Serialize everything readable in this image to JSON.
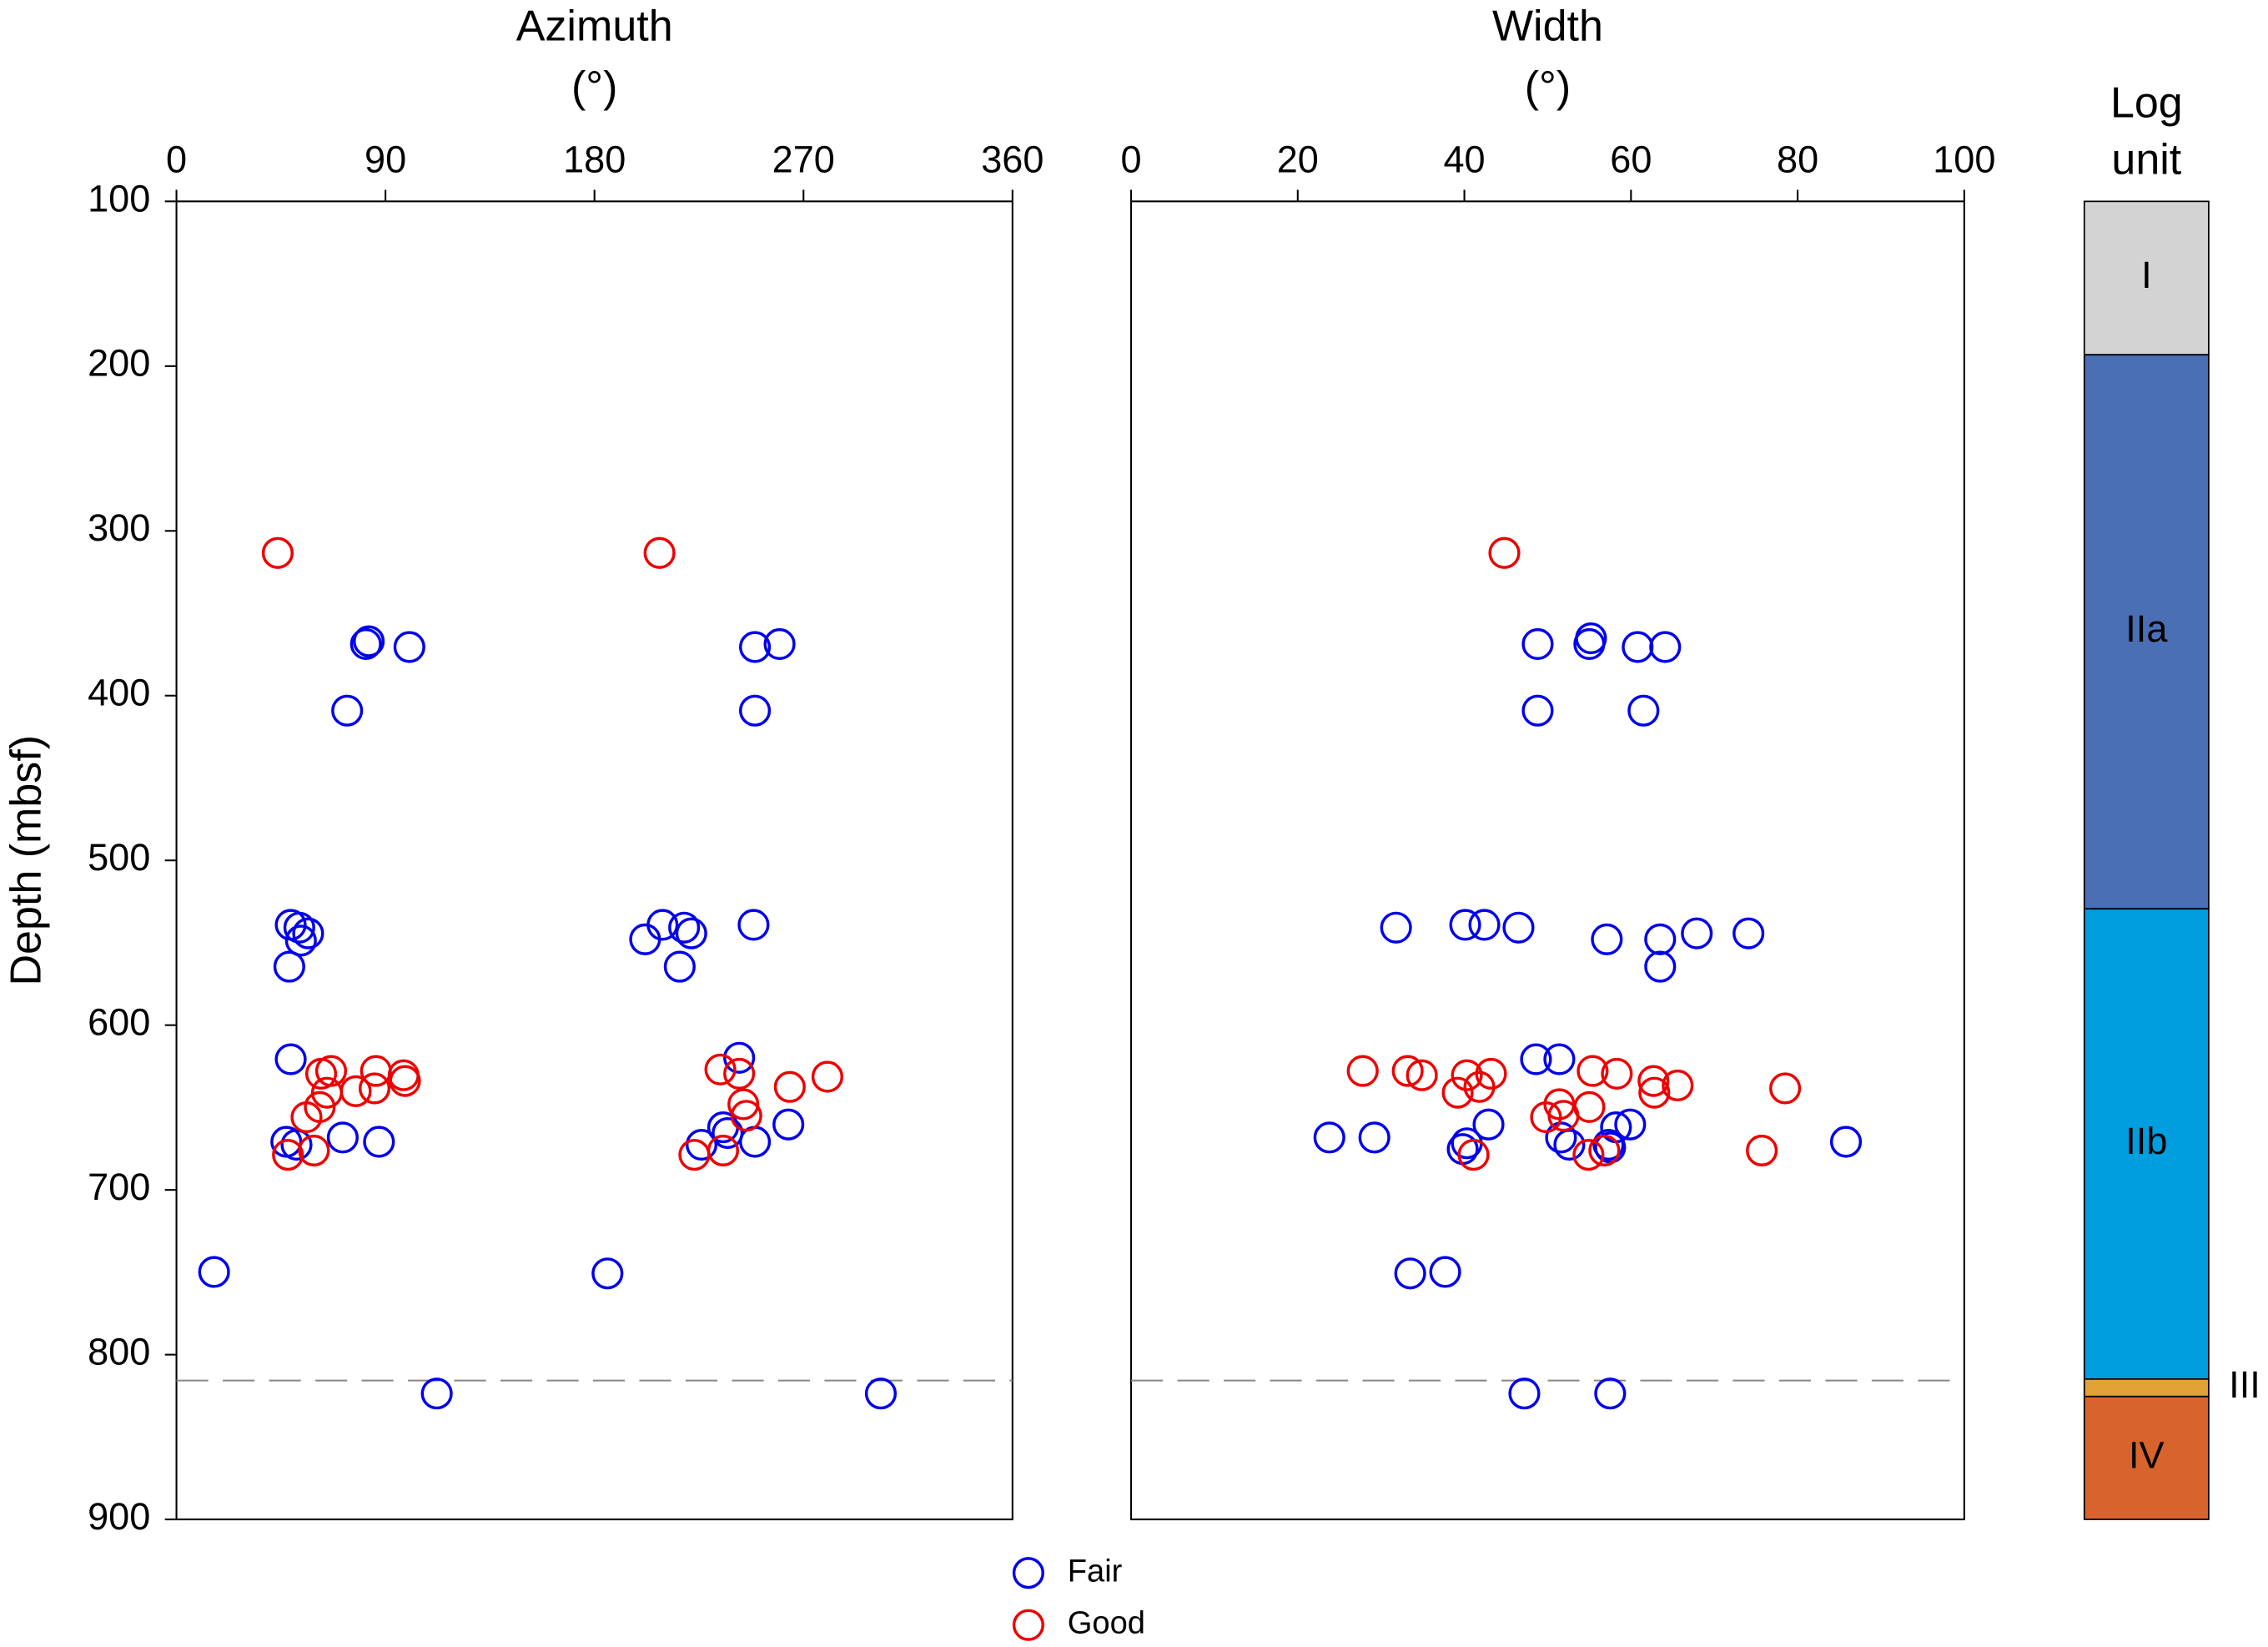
{
  "chart_data": [
    {
      "type": "scatter",
      "xlabel": [
        "Azimuth",
        "(°)"
      ],
      "ylabel": "Depth (mbsf)",
      "xlim": [
        0,
        360
      ],
      "xticks": [
        0,
        90,
        180,
        270,
        360
      ],
      "ylim": [
        900,
        100
      ],
      "yticks": [
        100,
        200,
        300,
        400,
        500,
        600,
        700,
        800,
        900
      ],
      "hline": 815.7,
      "legend": "bottom",
      "series": [
        {
          "name": "Fair",
          "color": "#0000ee",
          "x": [
            82.8,
            81.6,
            100.3,
            73.5,
            249.1,
            259.7,
            249.1,
            49.2,
            52.9,
            56.7,
            53.6,
            48.6,
            201.8,
            209.3,
            218.6,
            221.7,
            216.7,
            248.5,
            49.2,
            242.3,
            47.3,
            51.7,
            71.6,
            87.2,
            235.4,
            237.3,
            226.1,
            249.1,
            263.5,
            16.2,
            185.6,
            112.1,
            303.3
          ],
          "values": [
            367,
            368.7,
            370.5,
            409.1,
            370.5,
            368.7,
            409.1,
            539.1,
            540.8,
            544.3,
            548.7,
            564.5,
            547.9,
            539.1,
            540.8,
            544.3,
            564.5,
            539.1,
            620.7,
            619.8,
            670.8,
            672.6,
            668.2,
            670.8,
            662,
            665.5,
            672.6,
            670.8,
            660.3,
            749.8,
            750.7,
            823.6,
            823.6
          ]
        },
        {
          "name": "Good",
          "color": "#ee0000",
          "x": [
            43.6,
            208,
            62.3,
            66.6,
            64.8,
            77.2,
            85.9,
            85.3,
            97.8,
            98.4,
            56,
            61.7,
            59.2,
            48,
            234.2,
            242.3,
            264.1,
            280.3,
            244.1,
            245.4,
            223,
            235.4
          ],
          "values": [
            313.4,
            313.4,
            629.5,
            627.8,
            641,
            640.1,
            627.8,
            638.4,
            630.4,
            633.9,
            655.9,
            649.7,
            676.1,
            678.7,
            626.9,
            629.5,
            637.5,
            631.3,
            648,
            655,
            678.7,
            676.1
          ]
        }
      ]
    },
    {
      "type": "scatter",
      "xlabel": [
        "Width",
        "(°)"
      ],
      "xlim": [
        0,
        100
      ],
      "xticks": [
        0,
        20,
        40,
        60,
        80,
        100
      ],
      "ylim": [
        900,
        100
      ],
      "hline": 815.7,
      "series": [
        {
          "name": "Fair",
          "color": "#0000ee",
          "x": [
            48.8,
            55.2,
            55,
            60.8,
            64.1,
            48.8,
            61.5,
            31.8,
            40.1,
            42.4,
            46.5,
            57.1,
            63.5,
            67.9,
            74.1,
            63.5,
            48.6,
            51.4,
            23.8,
            29.2,
            42.9,
            39.8,
            40.3,
            51.6,
            52.6,
            58.2,
            59.9,
            57.3,
            57.5,
            85.8,
            33.5,
            37.7,
            47.2,
            57.5
          ],
          "values": [
            368.7,
            365.2,
            368.7,
            370.5,
            370.5,
            409.1,
            409.1,
            540.8,
            539.1,
            539.1,
            540.8,
            547.9,
            547.9,
            544.3,
            544.3,
            564.5,
            620.7,
            620.7,
            668.2,
            668.2,
            660.3,
            675.2,
            671.7,
            668.2,
            672.6,
            662,
            660.3,
            672.6,
            674.3,
            670.8,
            750.7,
            749.8,
            823.6,
            823.6
          ]
        },
        {
          "name": "Good",
          "color": "#ee0000",
          "x": [
            44.8,
            27.8,
            33.2,
            34.9,
            40.3,
            43.2,
            41.8,
            39.2,
            62.7,
            65.6,
            62.8,
            55.4,
            58.3,
            78.5,
            51.4,
            51.9,
            49.8,
            55,
            41.1,
            54.9,
            56.8,
            75.7
          ],
          "values": [
            313.4,
            627.8,
            627.8,
            630.4,
            630.4,
            629.5,
            637.5,
            641,
            633.9,
            636.6,
            641,
            627.8,
            629.5,
            638.4,
            648,
            655,
            655.9,
            649.7,
            678.7,
            678.7,
            676.1,
            676.1
          ]
        }
      ]
    },
    {
      "type": "column",
      "title": [
        "Log",
        "unit"
      ],
      "ylim": [
        900,
        100
      ],
      "categories": [
        "I",
        "IIa",
        "IIb",
        "III",
        "IV"
      ],
      "bounds": [
        100,
        193.1,
        529.4,
        814.8,
        825.4,
        900
      ],
      "colors": [
        "#d3d3d3",
        "#4a6fb5",
        "#009ddf",
        "#e3a236",
        "#d8632c"
      ]
    }
  ]
}
